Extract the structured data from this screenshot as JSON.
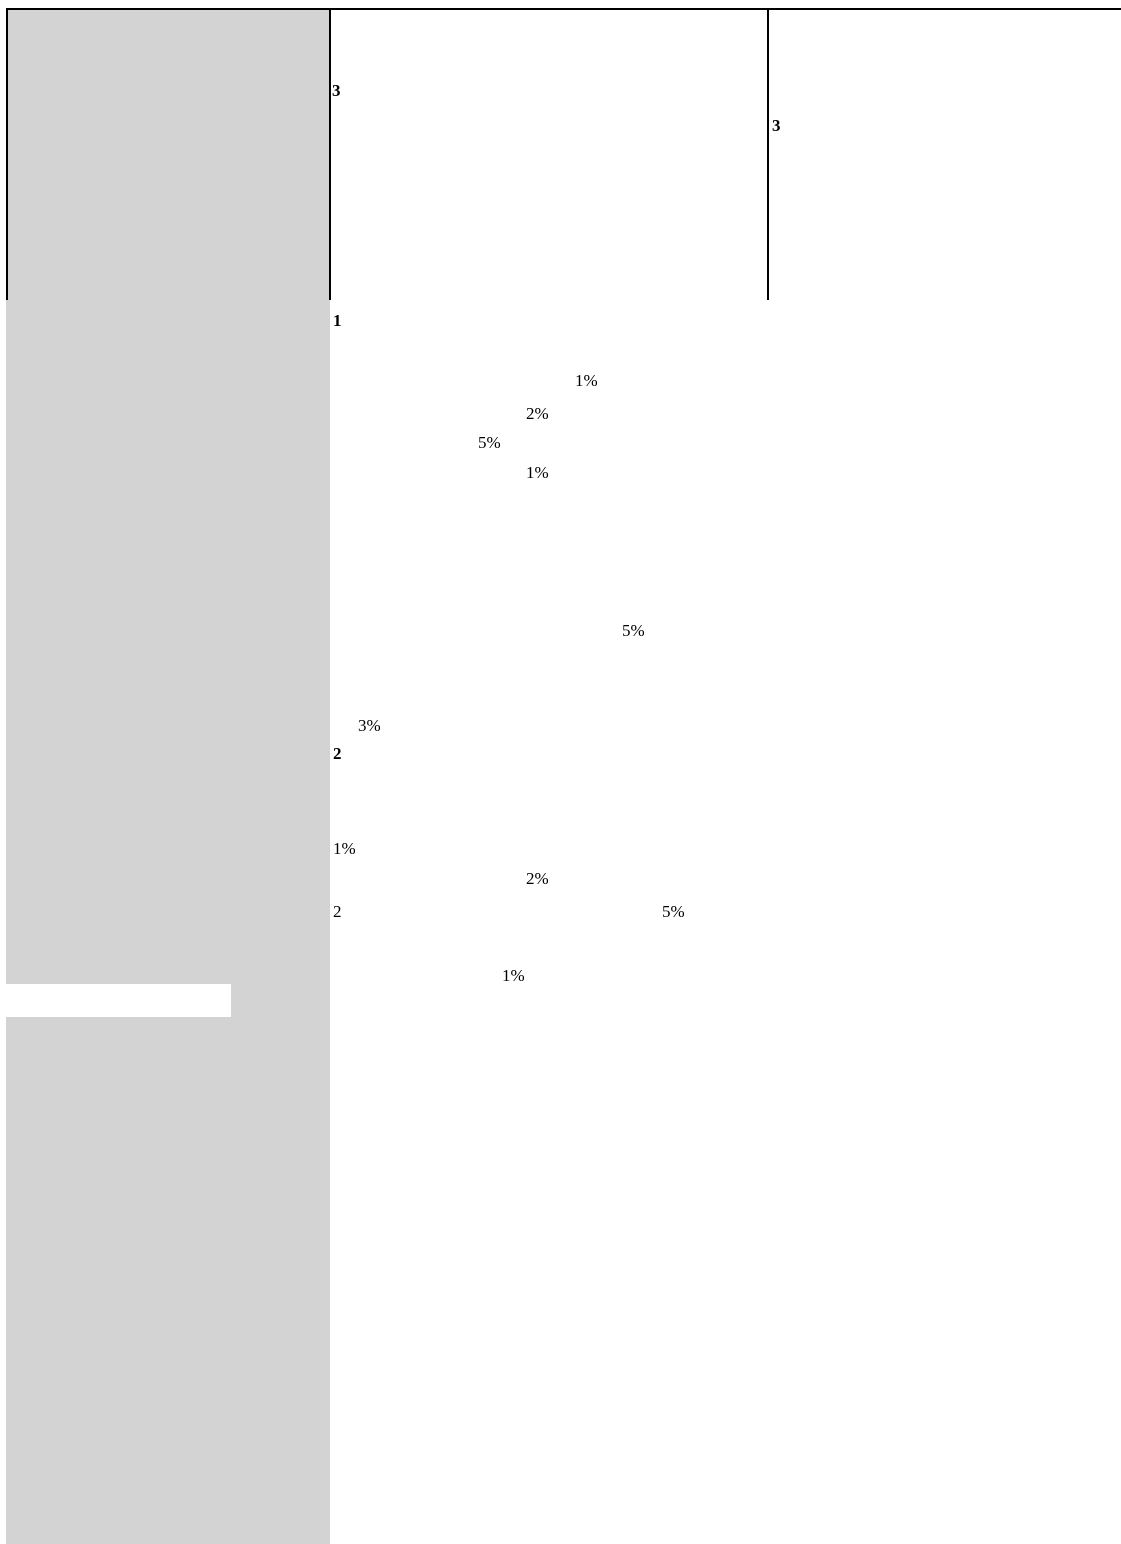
{
  "header_table": {
    "cell_2_marker": "3",
    "cell_3_marker": "3"
  },
  "section_1": {
    "marker": "1",
    "values": [
      "1%",
      "2%",
      "5%",
      "1%",
      "5%",
      "3%"
    ]
  },
  "section_2": {
    "marker": "2",
    "values": [
      "1%",
      "2%",
      "2",
      "5%",
      "1%"
    ]
  }
}
